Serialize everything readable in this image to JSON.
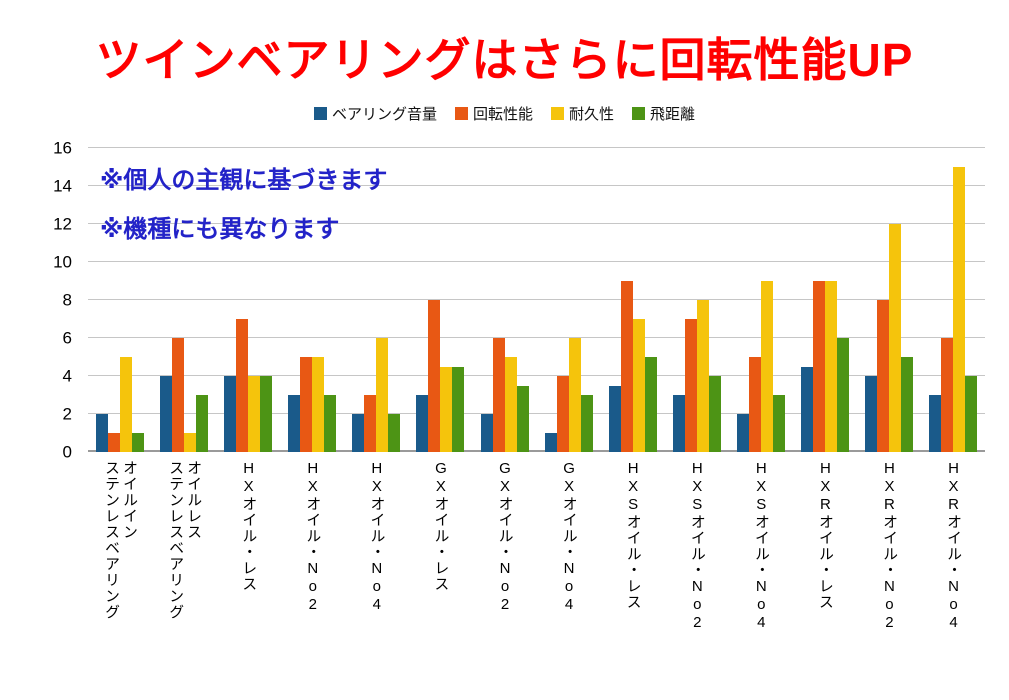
{
  "title": "ツインベアリングはさらに回転性能UP",
  "annotations": {
    "line1": "※個人の主観に基づきます",
    "line2": "※機種にも異なります"
  },
  "chart_data": {
    "type": "bar",
    "title": "ツインベアリングはさらに回転性能UP",
    "categories": [
      "オイルイン\nステンレスベアリング",
      "オイルレス\nステンレスベアリング",
      "HXオイル・レス",
      "HXオイル・No2",
      "HXオイル・No4",
      "GXオイル・レス",
      "GXオイル・No2",
      "GXオイル・No4",
      "HXSオイル・レス",
      "HXSオイル・No2",
      "HXSオイル・No4",
      "HXRオイル・レス",
      "HXRオイル・No2",
      "HXRオイル・No4"
    ],
    "series": [
      {
        "name": "ベアリング音量",
        "color": "#1a5a8a",
        "values": [
          2,
          4,
          4,
          3,
          2,
          3,
          2,
          1,
          3.5,
          3,
          2,
          4.5,
          4,
          3
        ]
      },
      {
        "name": "回転性能",
        "color": "#e85814",
        "values": [
          1,
          6,
          7,
          5,
          3,
          8,
          6,
          4,
          9,
          7,
          5,
          9,
          8,
          6
        ]
      },
      {
        "name": "耐久性",
        "color": "#f5c40c",
        "values": [
          5,
          1,
          4,
          5,
          6,
          4.5,
          5,
          6,
          7,
          8,
          9,
          9,
          12,
          15
        ]
      },
      {
        "name": "飛距離",
        "color": "#4d9415",
        "values": [
          1,
          3,
          4,
          3,
          2,
          4.5,
          3.5,
          3,
          5,
          4,
          3,
          6,
          5,
          4
        ]
      }
    ],
    "xlabel": "",
    "ylabel": "",
    "ylim": [
      0,
      16
    ],
    "yticks": [
      0,
      2,
      4,
      6,
      8,
      10,
      12,
      14,
      16
    ],
    "grid": true,
    "legend_position": "top"
  }
}
